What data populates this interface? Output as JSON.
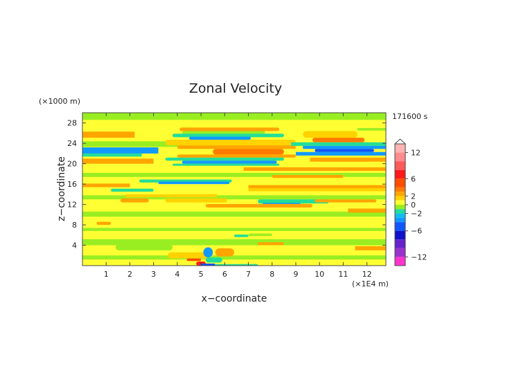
{
  "chart_data": {
    "type": "heatmap",
    "title": "Zonal Velocity",
    "xlabel": "x−coordinate",
    "ylabel": "z−coordinate",
    "x_unit": "(×1E4 m)",
    "y_unit": "(×1000 m)",
    "time_label": "171600 s",
    "xlim": [
      0,
      12.8
    ],
    "ylim": [
      0,
      30
    ],
    "x_ticks": [
      "1",
      "2",
      "3",
      "4",
      "5",
      "6",
      "7",
      "8",
      "9",
      "10",
      "11",
      "12"
    ],
    "y_ticks": [
      "4",
      "8",
      "12",
      "16",
      "20",
      "24",
      "28"
    ],
    "colorbar": {
      "range": [
        -14,
        14
      ],
      "tick_labels": [
        "12",
        "6",
        "2",
        "0",
        "−2",
        "−6",
        "−12"
      ],
      "tick_values": [
        12,
        6,
        2,
        0,
        -2,
        -6,
        -12
      ],
      "levels": [
        {
          "from": 12,
          "to": 14,
          "color": "#ffb3b3"
        },
        {
          "from": 10,
          "to": 12,
          "color": "#ff8c8c"
        },
        {
          "from": 8,
          "to": 10,
          "color": "#ff5a5a"
        },
        {
          "from": 6,
          "to": 8,
          "color": "#ff1a1a"
        },
        {
          "from": 4,
          "to": 6,
          "color": "#ff4d00"
        },
        {
          "from": 3,
          "to": 4,
          "color": "#ff7a00"
        },
        {
          "from": 2,
          "to": 3,
          "color": "#ffa500"
        },
        {
          "from": 1,
          "to": 2,
          "color": "#ffd200"
        },
        {
          "from": 0,
          "to": 1,
          "color": "#ffff33"
        },
        {
          "from": -1,
          "to": 0,
          "color": "#99ee22"
        },
        {
          "from": -2,
          "to": -1,
          "color": "#22dd99"
        },
        {
          "from": -3,
          "to": -2,
          "color": "#11bbee"
        },
        {
          "from": -4,
          "to": -3,
          "color": "#1199ff"
        },
        {
          "from": -6,
          "to": -4,
          "color": "#1155ff"
        },
        {
          "from": -8,
          "to": -6,
          "color": "#1111cc"
        },
        {
          "from": -10,
          "to": -8,
          "color": "#6622cc"
        },
        {
          "from": -12,
          "to": -10,
          "color": "#9933cc"
        },
        {
          "from": -14,
          "to": -12,
          "color": "#ff33cc"
        }
      ]
    },
    "background_level_color": "#ffff33",
    "features": [
      {
        "kind": "band",
        "x": [
          0,
          12.8
        ],
        "y": [
          28.6,
          30
        ],
        "value": -0.5
      },
      {
        "kind": "band",
        "x": [
          0,
          2.2
        ],
        "y": [
          25.1,
          26.3
        ],
        "value": 2.5
      },
      {
        "kind": "band",
        "x": [
          0,
          4.5
        ],
        "y": [
          23.3,
          24.4
        ],
        "value": -0.5
      },
      {
        "kind": "band",
        "x": [
          0,
          3.2
        ],
        "y": [
          22.0,
          23.2
        ],
        "value": -3.5
      },
      {
        "kind": "band",
        "x": [
          0,
          2.5
        ],
        "y": [
          21.4,
          22.0
        ],
        "value": -1.5
      },
      {
        "kind": "band",
        "x": [
          0,
          3.0
        ],
        "y": [
          20.0,
          21.0
        ],
        "value": 2.5
      },
      {
        "kind": "band",
        "x": [
          0,
          12.8
        ],
        "y": [
          17.4,
          18.2
        ],
        "value": -0.5
      },
      {
        "kind": "band",
        "x": [
          0,
          12.8
        ],
        "y": [
          13.0,
          13.8
        ],
        "value": -0.5
      },
      {
        "kind": "band",
        "x": [
          0,
          12.8
        ],
        "y": [
          9.6,
          10.6
        ],
        "value": -0.5
      },
      {
        "kind": "band",
        "x": [
          0,
          12.8
        ],
        "y": [
          6.8,
          7.4
        ],
        "value": -0.5
      },
      {
        "kind": "band",
        "x": [
          0,
          12.8
        ],
        "y": [
          4.0,
          5.2
        ],
        "value": -0.5
      },
      {
        "kind": "band",
        "x": [
          0,
          12.8
        ],
        "y": [
          1.2,
          2.0
        ],
        "value": -0.5
      },
      {
        "kind": "band",
        "x": [
          4.1,
          8.3
        ],
        "y": [
          26.4,
          27.1
        ],
        "value": 2.5
      },
      {
        "kind": "band",
        "x": [
          4.2,
          7.7
        ],
        "y": [
          25.9,
          26.4
        ],
        "value": -0.5
      },
      {
        "kind": "band",
        "x": [
          3.8,
          8.5
        ],
        "y": [
          25.2,
          25.9
        ],
        "value": -1.5
      },
      {
        "kind": "band",
        "x": [
          4.5,
          7.1
        ],
        "y": [
          24.7,
          25.3
        ],
        "value": -3.5
      },
      {
        "kind": "band",
        "x": [
          3.5,
          9.0
        ],
        "y": [
          23.6,
          24.7
        ],
        "value": 1.5
      },
      {
        "kind": "band",
        "x": [
          4.0,
          9.0
        ],
        "y": [
          22.9,
          23.6
        ],
        "value": 2.5
      },
      {
        "kind": "band",
        "x": [
          5.5,
          8.5
        ],
        "y": [
          21.8,
          22.9
        ],
        "value": 3.5
      },
      {
        "kind": "band",
        "x": [
          4.0,
          9.0
        ],
        "y": [
          21.2,
          21.8
        ],
        "value": 2.5
      },
      {
        "kind": "band",
        "x": [
          3.5,
          8.5
        ],
        "y": [
          20.6,
          21.2
        ],
        "value": -1.5
      },
      {
        "kind": "band",
        "x": [
          4.2,
          8.2
        ],
        "y": [
          20.0,
          20.6
        ],
        "value": -3.5
      },
      {
        "kind": "band",
        "x": [
          3.8,
          8.3
        ],
        "y": [
          19.6,
          20.0
        ],
        "value": -1.5
      },
      {
        "kind": "band",
        "x": [
          6.8,
          12.8
        ],
        "y": [
          18.6,
          19.3
        ],
        "value": 2.5
      },
      {
        "kind": "band",
        "x": [
          8.0,
          11.0
        ],
        "y": [
          17.2,
          17.8
        ],
        "value": 2.5
      },
      {
        "kind": "band",
        "x": [
          2.4,
          6.3
        ],
        "y": [
          16.3,
          16.9
        ],
        "value": -1.5
      },
      {
        "kind": "band",
        "x": [
          3.2,
          6.2
        ],
        "y": [
          16.0,
          16.5
        ],
        "value": -3.5
      },
      {
        "kind": "band",
        "x": [
          0,
          2.0
        ],
        "y": [
          15.4,
          16.1
        ],
        "value": 2.5
      },
      {
        "kind": "band",
        "x": [
          1.2,
          3.0
        ],
        "y": [
          14.5,
          15.1
        ],
        "value": -1.5
      },
      {
        "kind": "band",
        "x": [
          7.0,
          12.8
        ],
        "y": [
          15.2,
          15.8
        ],
        "value": 2.5
      },
      {
        "kind": "band",
        "x": [
          7.0,
          12.8
        ],
        "y": [
          14.6,
          15.2
        ],
        "value": 1.5
      },
      {
        "kind": "band",
        "x": [
          1.8,
          5.7
        ],
        "y": [
          13.4,
          14.0
        ],
        "value": 1.5
      },
      {
        "kind": "band",
        "x": [
          1.6,
          2.8
        ],
        "y": [
          12.4,
          13.2
        ],
        "value": 2.5
      },
      {
        "kind": "band",
        "x": [
          3.5,
          6.1
        ],
        "y": [
          12.4,
          13.2
        ],
        "value": 1.5
      },
      {
        "kind": "band",
        "x": [
          7.4,
          10.4
        ],
        "y": [
          12.2,
          13.0
        ],
        "value": -1.5
      },
      {
        "kind": "band",
        "x": [
          7.6,
          9.2
        ],
        "y": [
          11.9,
          12.3
        ],
        "value": -3.5
      },
      {
        "kind": "band",
        "x": [
          5.2,
          9.7
        ],
        "y": [
          11.4,
          12.1
        ],
        "value": 2.5
      },
      {
        "kind": "band",
        "x": [
          9.8,
          12.4
        ],
        "y": [
          12.4,
          13.0
        ],
        "value": 2.5
      },
      {
        "kind": "band",
        "x": [
          11.2,
          12.8
        ],
        "y": [
          10.4,
          11.2
        ],
        "value": 2.5
      },
      {
        "kind": "band",
        "x": [
          0.6,
          1.2
        ],
        "y": [
          8.0,
          8.6
        ],
        "value": 2.5
      },
      {
        "kind": "band",
        "x": [
          1.4,
          3.8
        ],
        "y": [
          3.0,
          4.2
        ],
        "value": -0.5
      },
      {
        "kind": "band",
        "x": [
          6.4,
          7.0
        ],
        "y": [
          5.6,
          6.1
        ],
        "value": -1.5
      },
      {
        "kind": "band",
        "x": [
          7.0,
          8.0
        ],
        "y": [
          5.8,
          6.3
        ],
        "value": -0.5
      },
      {
        "kind": "band",
        "x": [
          7.4,
          8.5
        ],
        "y": [
          4.0,
          4.6
        ],
        "value": 2.5
      },
      {
        "kind": "band",
        "x": [
          11.5,
          12.8
        ],
        "y": [
          3.0,
          3.8
        ],
        "value": 2.5
      },
      {
        "kind": "band",
        "x": [
          9.3,
          11.6
        ],
        "y": [
          25.1,
          26.4
        ],
        "value": 1.5
      },
      {
        "kind": "band",
        "x": [
          9.7,
          11.9
        ],
        "y": [
          24.2,
          25.1
        ],
        "value": 3.5
      },
      {
        "kind": "band",
        "x": [
          8.8,
          12.8
        ],
        "y": [
          23.5,
          24.2
        ],
        "value": -1.5
      },
      {
        "kind": "band",
        "x": [
          9.3,
          12.8
        ],
        "y": [
          22.9,
          23.5
        ],
        "value": -3.5
      },
      {
        "kind": "band",
        "x": [
          9.8,
          12.3
        ],
        "y": [
          22.3,
          22.9
        ],
        "value": -5
      },
      {
        "kind": "band",
        "x": [
          9.0,
          12.8
        ],
        "y": [
          21.6,
          22.3
        ],
        "value": -3.5
      },
      {
        "kind": "band",
        "x": [
          9.6,
          12.8
        ],
        "y": [
          20.4,
          21.2
        ],
        "value": 2.5
      },
      {
        "kind": "band",
        "x": [
          11.6,
          12.8
        ],
        "y": [
          26.5,
          27.0
        ],
        "value": -0.5
      },
      {
        "kind": "band",
        "x": [
          3.6,
          5.3
        ],
        "y": [
          1.4,
          2.6
        ],
        "value": 1.5
      },
      {
        "kind": "band",
        "x": [
          4.8,
          5.2
        ],
        "y": [
          0,
          0.8
        ],
        "value": 7
      },
      {
        "kind": "band",
        "x": [
          5.0,
          5.6
        ],
        "y": [
          0,
          0.4
        ],
        "value": -5
      },
      {
        "kind": "band",
        "x": [
          5.6,
          7.4
        ],
        "y": [
          0,
          0.3
        ],
        "value": -1.5
      },
      {
        "kind": "band",
        "x": [
          5.1,
          5.5
        ],
        "y": [
          1.6,
          3.6
        ],
        "value": -3.5
      },
      {
        "kind": "band",
        "x": [
          5.2,
          5.9
        ],
        "y": [
          0.6,
          1.6
        ],
        "value": -1.5
      },
      {
        "kind": "band",
        "x": [
          5.6,
          6.4
        ],
        "y": [
          1.8,
          3.4
        ],
        "value": 2.5
      },
      {
        "kind": "band",
        "x": [
          4.4,
          5.0
        ],
        "y": [
          0.9,
          1.4
        ],
        "value": 4
      }
    ]
  }
}
